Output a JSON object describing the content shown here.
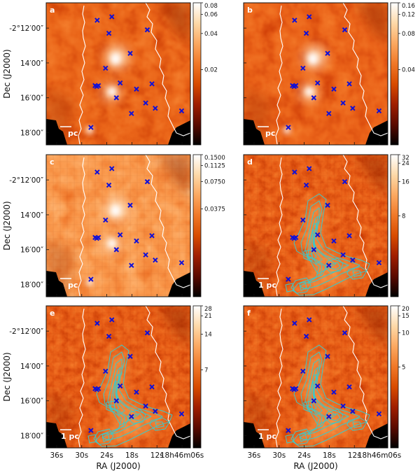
{
  "chart_data": {
    "type": "heatmap",
    "ylabel": "Dec (J2000)",
    "xlabel": "RA (J2000)",
    "x_ticks": [
      "36s",
      "30s",
      "24s",
      "18s",
      "12s",
      "18h46m06s"
    ],
    "y_ticks": [
      "-2°12′00″",
      "14′00″",
      "16′00″",
      "18′00″"
    ],
    "scale_bar_label": "1 pc",
    "contour_color": "#3cc8c8",
    "marker_color": "#1010d8",
    "colormap": [
      "#000000",
      "#5a0a00",
      "#a01e00",
      "#d84c00",
      "#f07828",
      "#fba860",
      "#fdd9a8",
      "#ffffff"
    ],
    "markers": [
      {
        "ra_s": 26.3,
        "dec_m": 11.55
      },
      {
        "ra_s": 22.8,
        "dec_m": 11.35
      },
      {
        "ra_s": 23.5,
        "dec_m": 12.3
      },
      {
        "ra_s": 14.3,
        "dec_m": 12.1
      },
      {
        "ra_s": 18.4,
        "dec_m": 13.45
      },
      {
        "ra_s": 24.3,
        "dec_m": 14.3
      },
      {
        "ra_s": 26.0,
        "dec_m": 15.3
      },
      {
        "ra_s": 26.8,
        "dec_m": 15.3
      },
      {
        "ra_s": 26.4,
        "dec_m": 15.35
      },
      {
        "ra_s": 20.8,
        "dec_m": 15.15
      },
      {
        "ra_s": 16.9,
        "dec_m": 15.5
      },
      {
        "ra_s": 13.2,
        "dec_m": 15.2
      },
      {
        "ra_s": 21.7,
        "dec_m": 16.0
      },
      {
        "ra_s": 14.7,
        "dec_m": 16.3
      },
      {
        "ra_s": 12.4,
        "dec_m": 16.6
      },
      {
        "ra_s": 18.1,
        "dec_m": 16.9
      },
      {
        "ra_s": 6.1,
        "dec_m": 16.75
      },
      {
        "ra_s": 27.8,
        "dec_m": 17.7
      }
    ],
    "panels": [
      {
        "label": "a",
        "colorbar_ticks": [
          {
            "label": "0.08",
            "frac": 1.0
          },
          {
            "label": "0.06",
            "frac": 0.918
          },
          {
            "label": "0.04",
            "frac": 0.784
          },
          {
            "label": "0.02",
            "frac": 0.53
          }
        ],
        "has_contours": false,
        "scale_bar": "partial"
      },
      {
        "label": "b",
        "colorbar_ticks": [
          {
            "label": "0.16",
            "frac": 1.0
          },
          {
            "label": "0.12",
            "frac": 0.918
          },
          {
            "label": "0.08",
            "frac": 0.784
          },
          {
            "label": "0.04",
            "frac": 0.53
          }
        ],
        "has_contours": false,
        "scale_bar": "partial"
      },
      {
        "label": "c",
        "colorbar_ticks": [
          {
            "label": "0.1500",
            "frac": 1.0
          },
          {
            "label": "0.1125",
            "frac": 0.924
          },
          {
            "label": "0.0750",
            "frac": 0.811
          },
          {
            "label": "0.0375",
            "frac": 0.618
          }
        ],
        "has_contours": false,
        "scale_bar": "partial"
      },
      {
        "label": "d",
        "colorbar_ticks": [
          {
            "label": "32",
            "frac": 1.0
          },
          {
            "label": "24",
            "frac": 0.94
          },
          {
            "label": "16",
            "frac": 0.81
          },
          {
            "label": "8",
            "frac": 0.57
          }
        ],
        "has_contours": true,
        "scale_bar": "full"
      },
      {
        "label": "e",
        "colorbar_ticks": [
          {
            "label": "28",
            "frac": 1.0
          },
          {
            "label": "21",
            "frac": 0.93
          },
          {
            "label": "14",
            "frac": 0.8
          },
          {
            "label": "7",
            "frac": 0.55
          }
        ],
        "has_contours": true,
        "scale_bar": "full"
      },
      {
        "label": "f",
        "colorbar_ticks": [
          {
            "label": "20",
            "frac": 1.0
          },
          {
            "label": "15",
            "frac": 0.93
          },
          {
            "label": "10",
            "frac": 0.81
          },
          {
            "label": "5",
            "frac": 0.57
          }
        ],
        "has_contours": true,
        "scale_bar": "full"
      }
    ]
  }
}
